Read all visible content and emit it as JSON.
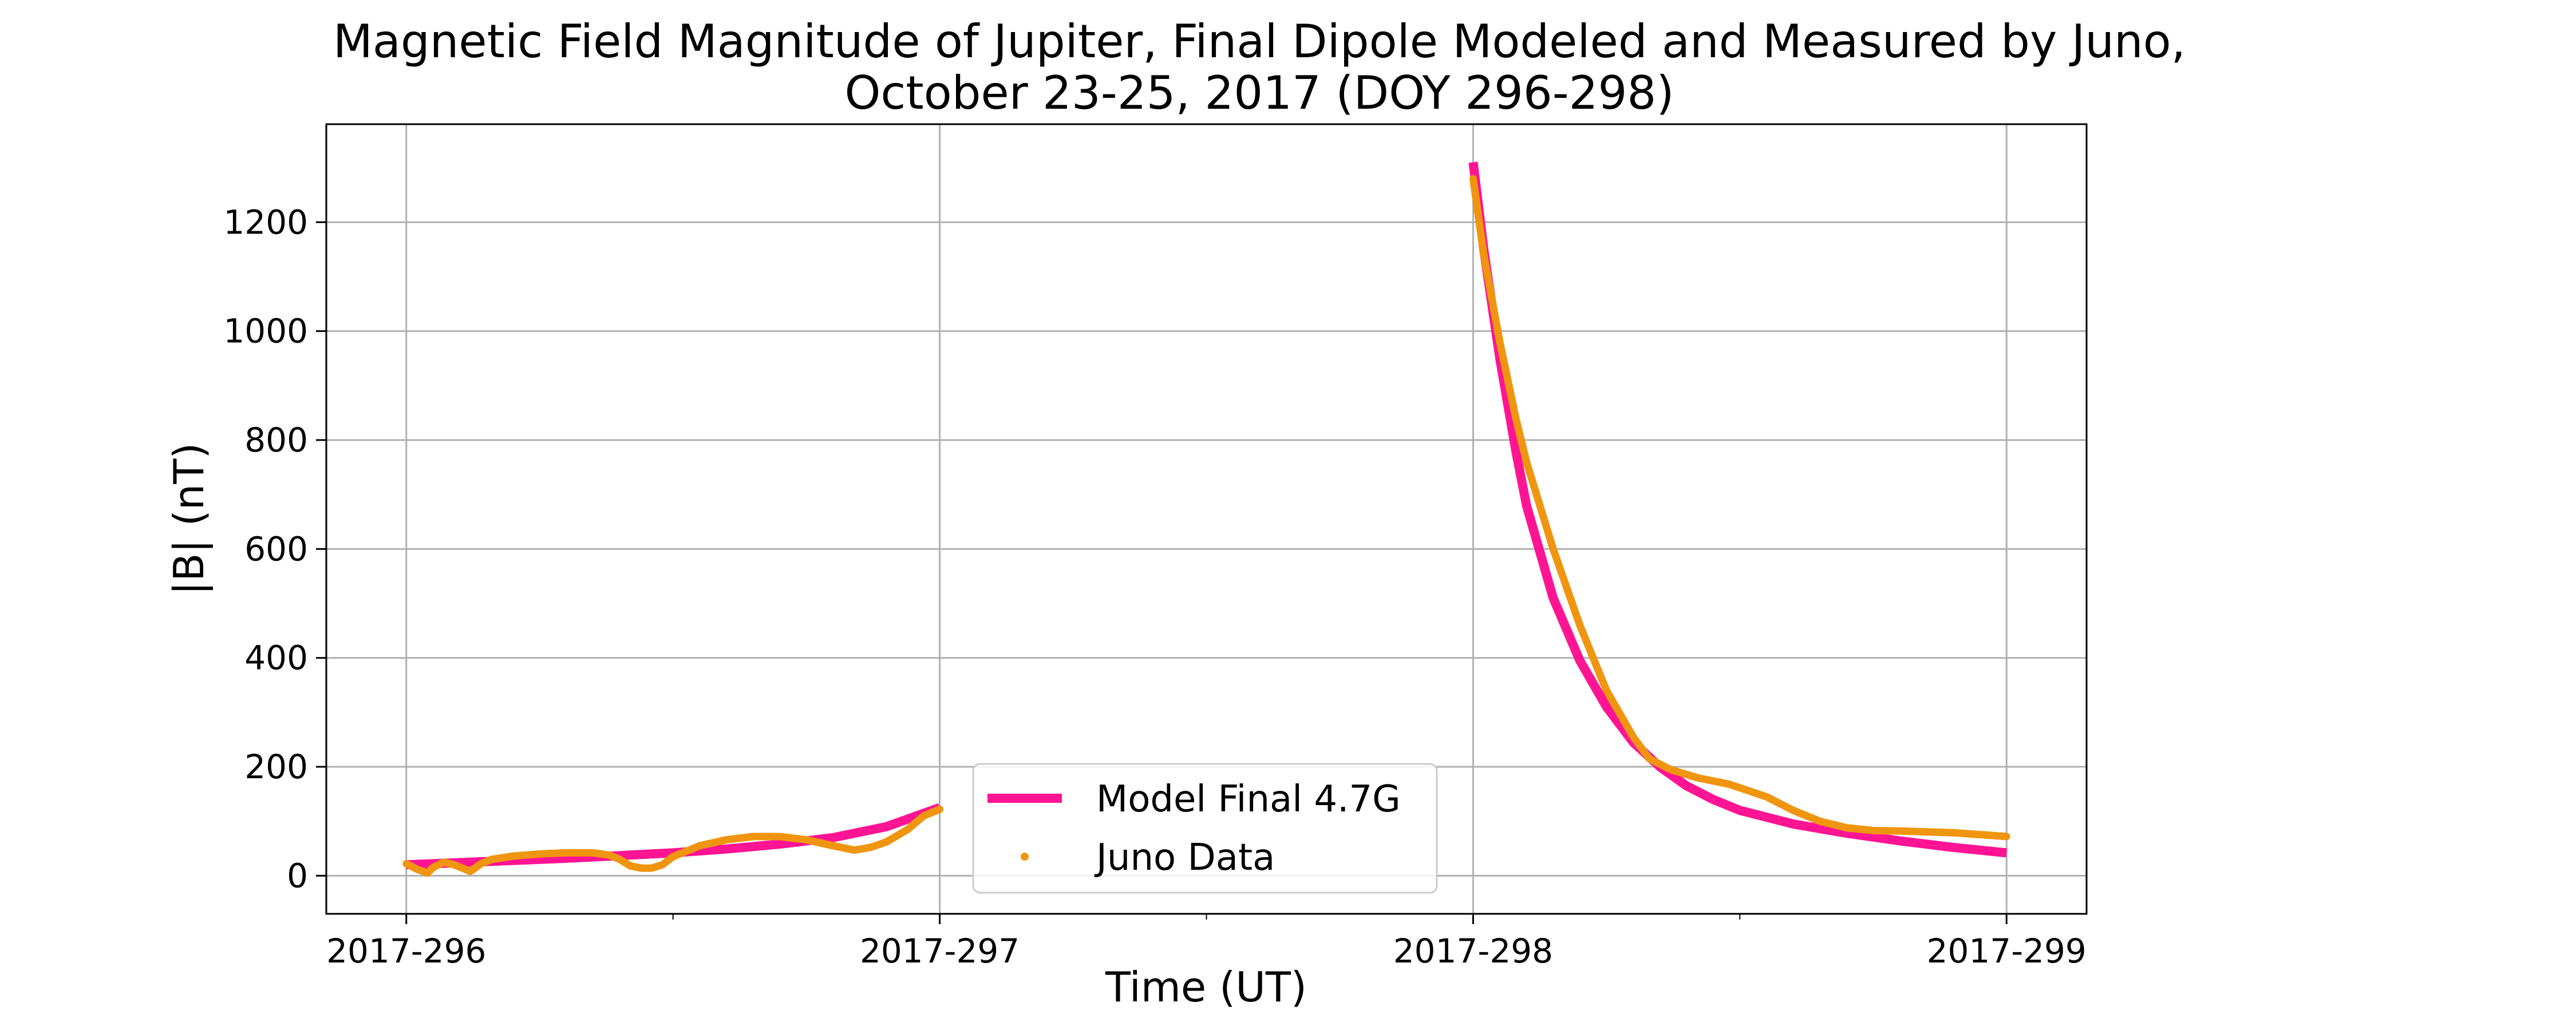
{
  "chart_data": {
    "type": "line",
    "title": [
      "Magnetic Field Magnitude of Jupiter, Final Dipole Modeled and Measured by Juno,",
      "October 23-25, 2017 (DOY 296-298)"
    ],
    "xlabel": "Time (UT)",
    "ylabel": "|B| (nT)",
    "xlim": [
      295.85,
      299.15
    ],
    "ylim": [
      -70,
      1380
    ],
    "xticks": [
      {
        "value": 296,
        "label": "2017-296"
      },
      {
        "value": 297,
        "label": "2017-297"
      },
      {
        "value": 298,
        "label": "2017-298"
      },
      {
        "value": 299,
        "label": "2017-299"
      }
    ],
    "minor_xticks": [
      296.5,
      297.5,
      298.5
    ],
    "yticks": [
      0,
      200,
      400,
      600,
      800,
      1000,
      1200
    ],
    "grid": true,
    "legend_placement": "lower-center",
    "colors": {
      "model": "#ff1493",
      "juno": "#f0950f"
    },
    "series": [
      {
        "name": "Model Final 4.7G",
        "style": "line",
        "segments": [
          [
            [
              296.0,
              20
            ],
            [
              296.1,
              24
            ],
            [
              296.2,
              28
            ],
            [
              296.3,
              32
            ],
            [
              296.4,
              37
            ],
            [
              296.5,
              42
            ],
            [
              296.6,
              49
            ],
            [
              296.7,
              58
            ],
            [
              296.8,
              70
            ],
            [
              296.9,
              90
            ],
            [
              297.0,
              125
            ]
          ],
          [
            [
              298.0,
              1310
            ],
            [
              298.02,
              1150
            ],
            [
              298.05,
              950
            ],
            [
              298.08,
              780
            ],
            [
              298.1,
              680
            ],
            [
              298.15,
              510
            ],
            [
              298.2,
              395
            ],
            [
              298.25,
              310
            ],
            [
              298.3,
              245
            ],
            [
              298.35,
              200
            ],
            [
              298.4,
              165
            ],
            [
              298.45,
              140
            ],
            [
              298.5,
              120
            ],
            [
              298.6,
              95
            ],
            [
              298.7,
              78
            ],
            [
              298.8,
              64
            ],
            [
              298.9,
              52
            ],
            [
              299.0,
              42
            ]
          ]
        ]
      },
      {
        "name": "Juno Data",
        "style": "points",
        "segments": [
          [
            [
              296.0,
              22
            ],
            [
              296.02,
              12
            ],
            [
              296.04,
              5
            ],
            [
              296.05,
              15
            ],
            [
              296.07,
              25
            ],
            [
              296.09,
              20
            ],
            [
              296.11,
              12
            ],
            [
              296.12,
              8
            ],
            [
              296.14,
              22
            ],
            [
              296.16,
              30
            ],
            [
              296.2,
              36
            ],
            [
              296.25,
              40
            ],
            [
              296.3,
              42
            ],
            [
              296.35,
              42
            ],
            [
              296.38,
              38
            ],
            [
              296.4,
              30
            ],
            [
              296.42,
              18
            ],
            [
              296.44,
              14
            ],
            [
              296.46,
              14
            ],
            [
              296.48,
              20
            ],
            [
              296.5,
              35
            ],
            [
              296.55,
              55
            ],
            [
              296.6,
              66
            ],
            [
              296.65,
              72
            ],
            [
              296.7,
              72
            ],
            [
              296.75,
              66
            ],
            [
              296.8,
              55
            ],
            [
              296.84,
              47
            ],
            [
              296.87,
              52
            ],
            [
              296.9,
              62
            ],
            [
              296.94,
              85
            ],
            [
              296.97,
              110
            ],
            [
              297.0,
              122
            ]
          ],
          [
            [
              298.0,
              1280
            ],
            [
              298.02,
              1140
            ],
            [
              298.05,
              980
            ],
            [
              298.08,
              840
            ],
            [
              298.1,
              760
            ],
            [
              298.15,
              600
            ],
            [
              298.2,
              460
            ],
            [
              298.25,
              340
            ],
            [
              298.3,
              255
            ],
            [
              298.33,
              215
            ],
            [
              298.37,
              195
            ],
            [
              298.42,
              180
            ],
            [
              298.48,
              168
            ],
            [
              298.55,
              145
            ],
            [
              298.6,
              120
            ],
            [
              298.65,
              100
            ],
            [
              298.7,
              88
            ],
            [
              298.75,
              83
            ],
            [
              298.8,
              82
            ],
            [
              298.9,
              79
            ],
            [
              299.0,
              72
            ]
          ]
        ]
      }
    ]
  }
}
